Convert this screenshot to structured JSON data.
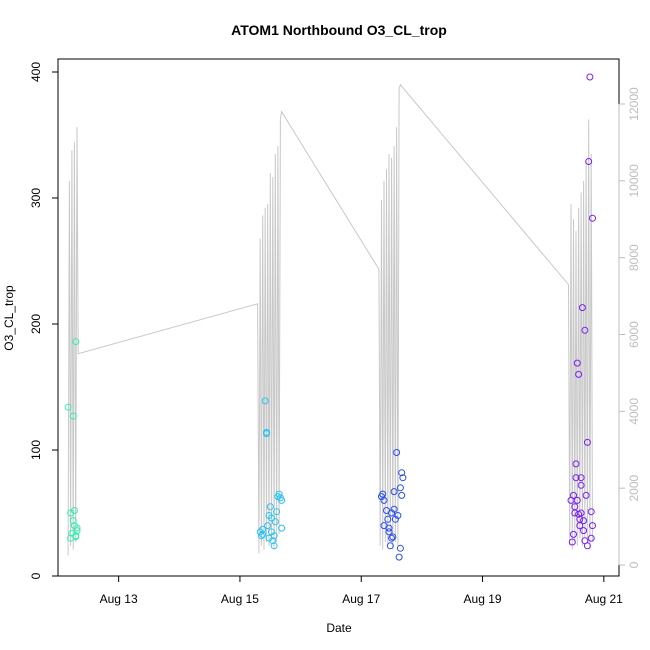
{
  "chart_data": {
    "type": "scatter",
    "title": "ATOM1 Northbound O3_CL_trop",
    "xlabel": "Date",
    "ylabel": "O3_CL_trop",
    "x_ticks": [
      "Aug 13",
      "Aug 15",
      "Aug 17",
      "Aug 19",
      "Aug 21"
    ],
    "y_ticks": [
      "0",
      "100",
      "200",
      "300",
      "400"
    ],
    "y2_ticks": [
      "0",
      "2000",
      "4000",
      "6000",
      "8000",
      "10000",
      "12000"
    ],
    "xlim": [
      "2016-08-12T00:00",
      "2016-08-21T06:00"
    ],
    "ylim": [
      0,
      400
    ],
    "y2lim": [
      0,
      12700
    ],
    "grid": false,
    "colors": {
      "axis": "#000000",
      "altitude_line": "#c8c8c8",
      "right_axis": "#bdbdbd"
    },
    "series": [
      {
        "color": "#33f0b0",
        "points": [
          [
            "2016-08-12T04:00",
            134
          ],
          [
            "2016-08-12T05:00",
            30
          ],
          [
            "2016-08-12T05:00",
            50
          ],
          [
            "2016-08-12T05:30",
            34
          ],
          [
            "2016-08-12T06:00",
            44
          ],
          [
            "2016-08-12T06:00",
            127
          ],
          [
            "2016-08-12T06:30",
            40
          ],
          [
            "2016-08-12T06:30",
            52
          ],
          [
            "2016-08-12T07:00",
            32
          ],
          [
            "2016-08-12T07:00",
            186
          ],
          [
            "2016-08-12T07:30",
            38
          ],
          [
            "2016-08-12T07:30",
            36
          ],
          [
            "2016-08-12T07:00",
            31
          ]
        ]
      },
      {
        "color": "#29c3f2",
        "points": [
          [
            "2016-08-15T08:00",
            35
          ],
          [
            "2016-08-15T08:30",
            32
          ],
          [
            "2016-08-15T09:00",
            37
          ],
          [
            "2016-08-15T09:00",
            33
          ],
          [
            "2016-08-15T10:00",
            139
          ],
          [
            "2016-08-15T10:30",
            114
          ],
          [
            "2016-08-15T10:30",
            113
          ],
          [
            "2016-08-15T11:00",
            40
          ],
          [
            "2016-08-15T11:30",
            30
          ],
          [
            "2016-08-15T11:30",
            48
          ],
          [
            "2016-08-15T12:00",
            55
          ],
          [
            "2016-08-15T12:30",
            35
          ],
          [
            "2016-08-15T13:00",
            28
          ],
          [
            "2016-08-15T13:30",
            24
          ],
          [
            "2016-08-15T14:00",
            43
          ],
          [
            "2016-08-15T14:30",
            51
          ],
          [
            "2016-08-15T15:00",
            63
          ],
          [
            "2016-08-15T15:30",
            65
          ],
          [
            "2016-08-15T16:00",
            62
          ],
          [
            "2016-08-15T16:30",
            60
          ],
          [
            "2016-08-15T16:30",
            38
          ],
          [
            "2016-08-15T12:30",
            46
          ],
          [
            "2016-08-15T13:30",
            32
          ]
        ]
      },
      {
        "color": "#2b4fe8",
        "points": [
          [
            "2016-08-17T08:00",
            63
          ],
          [
            "2016-08-17T08:30",
            65
          ],
          [
            "2016-08-17T09:00",
            60
          ],
          [
            "2016-08-17T09:00",
            40
          ],
          [
            "2016-08-17T10:00",
            52
          ],
          [
            "2016-08-17T10:30",
            45
          ],
          [
            "2016-08-17T11:00",
            35
          ],
          [
            "2016-08-17T11:30",
            24
          ],
          [
            "2016-08-17T12:00",
            50
          ],
          [
            "2016-08-17T12:00",
            30
          ],
          [
            "2016-08-17T13:00",
            53
          ],
          [
            "2016-08-17T13:00",
            67
          ],
          [
            "2016-08-17T13:30",
            45
          ],
          [
            "2016-08-17T14:00",
            98
          ],
          [
            "2016-08-17T14:30",
            48
          ],
          [
            "2016-08-17T15:00",
            15
          ],
          [
            "2016-08-17T15:30",
            70
          ],
          [
            "2016-08-17T15:30",
            22
          ],
          [
            "2016-08-17T16:00",
            82
          ],
          [
            "2016-08-17T16:00",
            64
          ],
          [
            "2016-08-17T16:30",
            78
          ],
          [
            "2016-08-17T11:00",
            38
          ],
          [
            "2016-08-17T12:30",
            31
          ]
        ]
      },
      {
        "color": "#7b1ff0",
        "points": [
          [
            "2016-08-20T11:00",
            60
          ],
          [
            "2016-08-20T11:30",
            27
          ],
          [
            "2016-08-20T12:00",
            64
          ],
          [
            "2016-08-20T12:00",
            33
          ],
          [
            "2016-08-20T12:30",
            55
          ],
          [
            "2016-08-20T13:00",
            89
          ],
          [
            "2016-08-20T13:00",
            78
          ],
          [
            "2016-08-20T13:30",
            169
          ],
          [
            "2016-08-20T14:00",
            160
          ],
          [
            "2016-08-20T14:30",
            40
          ],
          [
            "2016-08-20T15:00",
            72
          ],
          [
            "2016-08-20T15:00",
            50
          ],
          [
            "2016-08-20T15:30",
            213
          ],
          [
            "2016-08-20T16:00",
            44
          ],
          [
            "2016-08-20T16:00",
            36
          ],
          [
            "2016-08-20T16:30",
            195
          ],
          [
            "2016-08-20T16:30",
            28
          ],
          [
            "2016-08-20T17:00",
            64
          ],
          [
            "2016-08-20T17:30",
            106
          ],
          [
            "2016-08-20T17:30",
            24
          ],
          [
            "2016-08-20T18:00",
            329
          ],
          [
            "2016-08-20T18:30",
            396
          ],
          [
            "2016-08-20T19:00",
            51
          ],
          [
            "2016-08-20T19:00",
            30
          ],
          [
            "2016-08-20T19:30",
            284
          ],
          [
            "2016-08-20T19:30",
            40
          ],
          [
            "2016-08-20T12:30",
            50
          ],
          [
            "2016-08-20T13:30",
            60
          ],
          [
            "2016-08-20T14:00",
            49
          ],
          [
            "2016-08-20T14:30",
            45
          ],
          [
            "2016-08-20T15:00",
            78
          ]
        ]
      }
    ],
    "altitude_line": {
      "axis": "right",
      "points": [
        [
          "2016-08-12T04:00",
          250
        ],
        [
          "2016-08-12T04:30",
          10000
        ],
        [
          "2016-08-12T05:00",
          500
        ],
        [
          "2016-08-12T05:30",
          10800
        ],
        [
          "2016-08-12T06:00",
          400
        ],
        [
          "2016-08-12T06:30",
          11000
        ],
        [
          "2016-08-12T07:00",
          600
        ],
        [
          "2016-08-12T07:30",
          11400
        ],
        [
          "2016-08-12T08:00",
          5500
        ],
        [
          "2016-08-15T07:00",
          6800
        ],
        [
          "2016-08-15T07:30",
          300
        ],
        [
          "2016-08-15T08:00",
          8500
        ],
        [
          "2016-08-15T08:30",
          500
        ],
        [
          "2016-08-15T09:00",
          9100
        ],
        [
          "2016-08-15T09:30",
          400
        ],
        [
          "2016-08-15T10:00",
          9300
        ],
        [
          "2016-08-15T10:30",
          600
        ],
        [
          "2016-08-15T11:00",
          9400
        ],
        [
          "2016-08-15T11:30",
          500
        ],
        [
          "2016-08-15T12:00",
          10200
        ],
        [
          "2016-08-15T12:30",
          700
        ],
        [
          "2016-08-15T13:00",
          10100
        ],
        [
          "2016-08-15T13:30",
          400
        ],
        [
          "2016-08-15T14:00",
          10700
        ],
        [
          "2016-08-15T14:30",
          600
        ],
        [
          "2016-08-15T15:00",
          10900
        ],
        [
          "2016-08-15T15:30",
          800
        ],
        [
          "2016-08-15T16:00",
          11600
        ],
        [
          "2016-08-15T16:30",
          11800
        ],
        [
          "2016-08-17T07:00",
          7700
        ],
        [
          "2016-08-17T07:30",
          500
        ],
        [
          "2016-08-17T08:00",
          9500
        ],
        [
          "2016-08-17T08:30",
          400
        ],
        [
          "2016-08-17T09:00",
          10000
        ],
        [
          "2016-08-17T09:30",
          600
        ],
        [
          "2016-08-17T10:00",
          10300
        ],
        [
          "2016-08-17T10:30",
          500
        ],
        [
          "2016-08-17T11:00",
          10700
        ],
        [
          "2016-08-17T11:30",
          700
        ],
        [
          "2016-08-17T12:00",
          10600
        ],
        [
          "2016-08-17T12:30",
          400
        ],
        [
          "2016-08-17T13:00",
          10900
        ],
        [
          "2016-08-17T13:30",
          600
        ],
        [
          "2016-08-17T14:00",
          11400
        ],
        [
          "2016-08-17T14:30",
          500
        ],
        [
          "2016-08-17T15:00",
          12400
        ],
        [
          "2016-08-17T15:30",
          12500
        ],
        [
          "2016-08-20T10:00",
          7300
        ],
        [
          "2016-08-20T10:30",
          500
        ],
        [
          "2016-08-20T11:00",
          9400
        ],
        [
          "2016-08-20T11:30",
          400
        ],
        [
          "2016-08-20T12:00",
          9000
        ],
        [
          "2016-08-20T12:30",
          600
        ],
        [
          "2016-08-20T13:00",
          8700
        ],
        [
          "2016-08-20T13:30",
          500
        ],
        [
          "2016-08-20T14:00",
          9300
        ],
        [
          "2016-08-20T14:30",
          700
        ],
        [
          "2016-08-20T15:00",
          9700
        ],
        [
          "2016-08-20T15:30",
          500
        ],
        [
          "2016-08-20T16:00",
          10000
        ],
        [
          "2016-08-20T16:30",
          700
        ],
        [
          "2016-08-20T17:00",
          10500
        ],
        [
          "2016-08-20T17:30",
          600
        ],
        [
          "2016-08-20T18:00",
          11600
        ],
        [
          "2016-08-20T18:30",
          400
        ],
        [
          "2016-08-20T19:00",
          10700
        ],
        [
          "2016-08-20T19:30",
          600
        ]
      ]
    }
  }
}
